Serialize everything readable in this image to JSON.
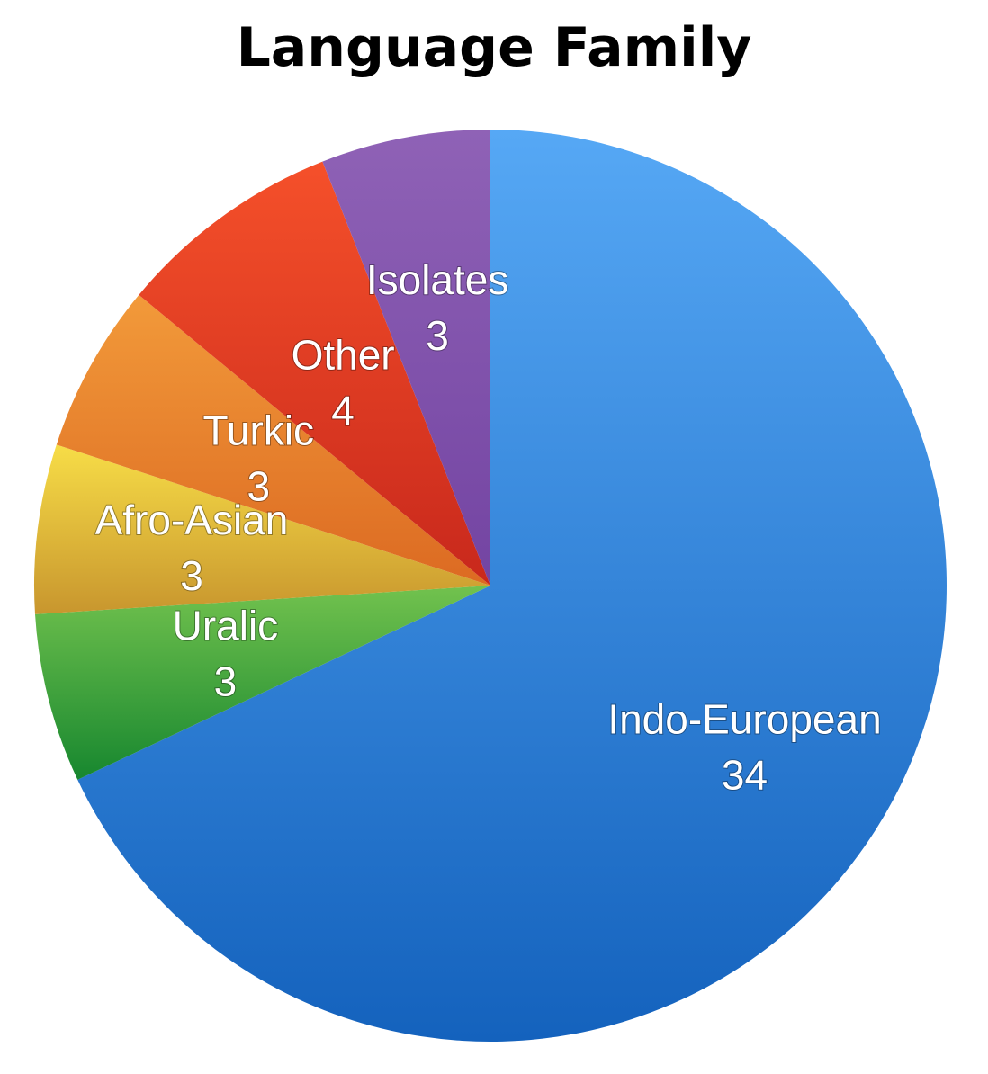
{
  "chart_data": {
    "type": "pie",
    "title": "Language Family",
    "slices": [
      {
        "label": "Indo-European",
        "value": 34,
        "color_light": "#56a8f5",
        "color_dark": "#1462bd"
      },
      {
        "label": "Uralic",
        "value": 3,
        "color_light": "#72c24e",
        "color_dark": "#17872f"
      },
      {
        "label": "Afro-Asian",
        "value": 3,
        "color_light": "#f7dd47",
        "color_dark": "#c8962e"
      },
      {
        "label": "Turkic",
        "value": 3,
        "color_light": "#f29a3a",
        "color_dark": "#dc6a22"
      },
      {
        "label": "Other",
        "value": 4,
        "color_light": "#f5502a",
        "color_dark": "#c8281c"
      },
      {
        "label": "Isolates",
        "value": 3,
        "color_light": "#8f62b6",
        "color_dark": "#7344a2"
      }
    ]
  }
}
